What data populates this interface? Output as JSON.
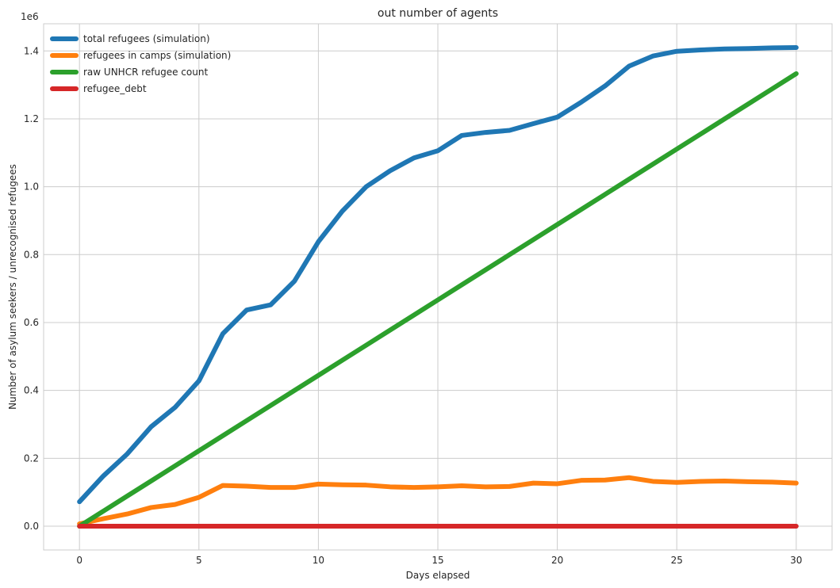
{
  "chart_data": {
    "type": "line",
    "title": "out number of agents",
    "xlabel": "Days elapsed",
    "ylabel": "Number of asylum seekers / unrecognised refugees",
    "offset_text": "1e6",
    "xlim": [
      -1.5,
      31.5
    ],
    "ylim": [
      -70000,
      1480000
    ],
    "grid": true,
    "legend_position": "upper left",
    "x_ticks": [
      0,
      5,
      10,
      15,
      20,
      25,
      30
    ],
    "y_ticks": [
      0,
      200000,
      400000,
      600000,
      800000,
      1000000,
      1200000,
      1400000
    ],
    "y_tick_labels": [
      "0.0",
      "0.2",
      "0.4",
      "0.6",
      "0.8",
      "1.0",
      "1.2",
      "1.4"
    ],
    "x": [
      0,
      1,
      2,
      3,
      4,
      5,
      6,
      7,
      8,
      9,
      10,
      11,
      12,
      13,
      14,
      15,
      16,
      17,
      18,
      19,
      20,
      21,
      22,
      23,
      24,
      25,
      26,
      27,
      28,
      29,
      30
    ],
    "series": [
      {
        "name": "total refugees (simulation)",
        "color": "#1f77b4",
        "values": [
          72000,
          148000,
          213000,
          293000,
          350000,
          428000,
          567000,
          637000,
          652000,
          722000,
          838000,
          928000,
          1000000,
          1047000,
          1085000,
          1106000,
          1151000,
          1160000,
          1166000,
          1186000,
          1205000,
          1249000,
          1297000,
          1355000,
          1385000,
          1399000,
          1403000,
          1406000,
          1407000,
          1409000,
          1410000
        ]
      },
      {
        "name": "refugees in camps (simulation)",
        "color": "#ff7f0e",
        "values": [
          7000,
          22000,
          36000,
          55000,
          64000,
          85000,
          120000,
          118000,
          114000,
          114000,
          124000,
          122000,
          121000,
          116000,
          114000,
          116000,
          119000,
          116000,
          117000,
          127000,
          125000,
          135000,
          136000,
          143000,
          132000,
          129000,
          132000,
          133000,
          131000,
          130000,
          127000
        ]
      },
      {
        "name": "raw UNHCR refugee count",
        "color": "#2ca02c",
        "values": [
          0,
          44433,
          88867,
          133300,
          177733,
          222167,
          266600,
          311033,
          355467,
          399900,
          444333,
          488767,
          533200,
          577633,
          622067,
          666500,
          710933,
          755367,
          799800,
          844233,
          888667,
          933100,
          977533,
          1021967,
          1066400,
          1110833,
          1155267,
          1199700,
          1244133,
          1288567,
          1333000
        ]
      },
      {
        "name": "refugee_debt",
        "color": "#d62728",
        "values": [
          0,
          0,
          0,
          0,
          0,
          0,
          0,
          0,
          0,
          0,
          0,
          0,
          0,
          0,
          0,
          0,
          0,
          0,
          0,
          0,
          0,
          0,
          0,
          0,
          0,
          0,
          0,
          0,
          0,
          0,
          0
        ]
      }
    ]
  }
}
